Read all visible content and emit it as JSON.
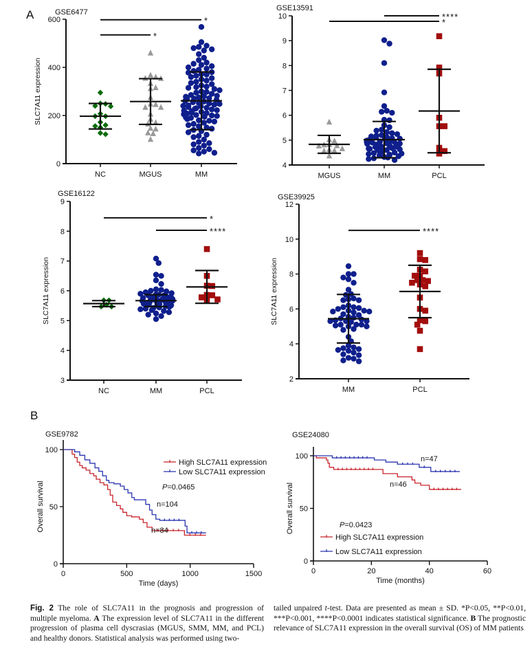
{
  "panel_labels": {
    "a": "A",
    "b": "B"
  },
  "caption": {
    "fig_label": "Fig. 2",
    "left": " The role of SLC7A11 in the prognosis and progression of multiple myeloma. ",
    "left_bold_a": "A",
    "left_rest": " The expression level of SLC7A11 in the different progression of plasma cell dyscrasias (MGUS, SMM, MM, and PCL) and healthy donors. Statistical analysis was performed using two-",
    "right_pre": "tailed unpaired ",
    "right_t": "t",
    "right_mid": "-test. Data are presented as mean ± SD. *P<0.05, **P<0.01, ***P<0.001, ****P<0.0001 indicates statistical significance. ",
    "right_bold_b": "B",
    "right_rest": " The prognostic relevance of SLC7A11 expression in the overall survival (OS) of MM patients"
  },
  "colors": {
    "NC": "#0b6b0b",
    "MGUS": "#9a9a9a",
    "MM": "#0f1f8c",
    "PCL": "#a30d0d",
    "high": "#c8242b",
    "low": "#2b35b0",
    "axis": "#111111"
  },
  "chart_data": [
    {
      "type": "scatter",
      "title": "GSE6477",
      "ylabel": "SLC7A11 expression",
      "ylim": [
        0,
        600
      ],
      "yticks": [
        0,
        200,
        400,
        600
      ],
      "categories": [
        "NC",
        "MGUS",
        "MM"
      ],
      "groups": [
        {
          "name": "NC",
          "marker": "diamond",
          "mean": 197,
          "sd": 53,
          "values": [
            295,
            250,
            248,
            240,
            238,
            207,
            197,
            197,
            172,
            160,
            156,
            150,
            127,
            122
          ]
        },
        {
          "name": "MGUS",
          "marker": "triangle",
          "mean": 258,
          "sd": 95,
          "values": [
            460,
            368,
            360,
            355,
            354,
            333,
            316,
            312,
            275,
            248,
            246,
            234,
            234,
            206,
            185,
            171,
            165,
            147,
            144,
            128,
            125,
            101
          ]
        },
        {
          "name": "MM",
          "marker": "circle",
          "mean": 261,
          "sd": 120,
          "values": [
            568,
            505,
            490,
            485,
            480,
            475,
            470,
            455,
            440,
            430,
            420,
            415,
            410,
            405,
            400,
            395,
            390,
            385,
            380,
            378,
            372,
            370,
            365,
            360,
            355,
            350,
            345,
            340,
            335,
            330,
            325,
            320,
            318,
            315,
            310,
            305,
            300,
            298,
            295,
            290,
            285,
            282,
            280,
            278,
            275,
            272,
            270,
            268,
            265,
            262,
            260,
            258,
            255,
            252,
            250,
            248,
            245,
            242,
            240,
            238,
            235,
            232,
            230,
            228,
            225,
            222,
            220,
            218,
            215,
            212,
            210,
            208,
            205,
            202,
            200,
            198,
            195,
            192,
            190,
            185,
            180,
            178,
            175,
            170,
            165,
            160,
            155,
            150,
            145,
            140,
            135,
            130,
            120,
            115,
            110,
            100,
            90,
            85,
            80,
            75,
            65,
            60,
            55,
            50,
            45,
            42
          ]
        }
      ],
      "significance": [
        {
          "from": "NC",
          "to": "MM",
          "y": 598,
          "label": "*"
        },
        {
          "from": "NC",
          "to": "MGUS",
          "y": 535,
          "label": "*"
        }
      ]
    },
    {
      "type": "scatter",
      "title": "GSE13591",
      "ylabel": "",
      "ylim": [
        4,
        10
      ],
      "yticks": [
        4,
        5,
        6,
        7,
        8,
        9,
        10
      ],
      "categories": [
        "MGUS",
        "MM",
        "PCL"
      ],
      "groups": [
        {
          "name": "MGUS",
          "marker": "triangle",
          "mean": 4.83,
          "sd": 0.36,
          "values": [
            5.73,
            5.02,
            4.97,
            4.82,
            4.81,
            4.78,
            4.77,
            4.66,
            4.62,
            4.58,
            4.57,
            4.37
          ]
        },
        {
          "name": "MM",
          "marker": "circle",
          "mean": 5.02,
          "sd": 0.73,
          "values": [
            9.02,
            8.88,
            8.1,
            6.92,
            6.37,
            6.18,
            6.14,
            6.1,
            5.82,
            5.8,
            5.6,
            5.52,
            5.42,
            5.38,
            5.32,
            5.28,
            5.24,
            5.2,
            5.18,
            5.15,
            5.12,
            5.1,
            5.08,
            5.06,
            5.05,
            5.02,
            5.0,
            4.98,
            4.96,
            4.95,
            4.93,
            4.92,
            4.9,
            4.88,
            4.86,
            4.85,
            4.83,
            4.82,
            4.8,
            4.78,
            4.76,
            4.75,
            4.73,
            4.72,
            4.7,
            4.68,
            4.66,
            4.65,
            4.63,
            4.62,
            4.6,
            4.58,
            4.56,
            4.55,
            4.53,
            4.5,
            4.48,
            4.46,
            4.44,
            4.42,
            4.4,
            4.38,
            4.35,
            4.32,
            4.3,
            4.27,
            4.24,
            4.2
          ]
        },
        {
          "name": "PCL",
          "marker": "square",
          "mean": 6.17,
          "sd": 1.68,
          "values": [
            9.18,
            7.92,
            7.68,
            5.9,
            5.56,
            5.56,
            4.69,
            4.56,
            4.46
          ]
        }
      ],
      "significance": [
        {
          "from": "MM",
          "to": "PCL",
          "y": 10.0,
          "label": "****"
        },
        {
          "from": "MGUS",
          "to": "PCL",
          "y": 9.78,
          "label": "*"
        }
      ]
    },
    {
      "type": "scatter",
      "title": "GSE16122",
      "ylabel": "SLC7A11 expression",
      "ylim": [
        3,
        9
      ],
      "yticks": [
        3,
        4,
        5,
        6,
        7,
        8,
        9
      ],
      "categories": [
        "NC",
        "MM",
        "PCL"
      ],
      "groups": [
        {
          "name": "NC",
          "marker": "diamond",
          "mean": 5.57,
          "sd": 0.1,
          "values": [
            5.68,
            5.68,
            5.53,
            5.47,
            5.47
          ]
        },
        {
          "name": "MM",
          "marker": "circle",
          "mean": 5.67,
          "sd": 0.2,
          "values": [
            7.08,
            6.93,
            6.54,
            6.5,
            6.35,
            6.23,
            6.05,
            6.03,
            6.0,
            5.98,
            5.95,
            5.92,
            5.9,
            5.88,
            5.87,
            5.85,
            5.84,
            5.82,
            5.8,
            5.79,
            5.78,
            5.77,
            5.76,
            5.75,
            5.74,
            5.73,
            5.72,
            5.71,
            5.7,
            5.69,
            5.68,
            5.67,
            5.66,
            5.65,
            5.64,
            5.63,
            5.62,
            5.61,
            5.6,
            5.59,
            5.58,
            5.57,
            5.56,
            5.55,
            5.54,
            5.53,
            5.52,
            5.5,
            5.48,
            5.46,
            5.44,
            5.42,
            5.4,
            5.38,
            5.35,
            5.32,
            5.28,
            5.24,
            5.2,
            5.15,
            5.05
          ]
        },
        {
          "name": "PCL",
          "marker": "square",
          "mean": 6.13,
          "sd": 0.55,
          "values": [
            7.4,
            6.5,
            6.17,
            6.16,
            5.86,
            5.85,
            5.78,
            5.71,
            5.69
          ]
        }
      ],
      "significance": [
        {
          "from": "NC",
          "to": "PCL",
          "y": 8.45,
          "label": "*"
        },
        {
          "from": "MM",
          "to": "PCL",
          "y": 8.03,
          "label": "****"
        }
      ]
    },
    {
      "type": "scatter",
      "title": "GSE39925",
      "ylabel": "SLC7A11 expression",
      "ylim": [
        2,
        12
      ],
      "yticks": [
        2,
        4,
        6,
        8,
        10,
        12
      ],
      "categories": [
        "MM",
        "PCL"
      ],
      "groups": [
        {
          "name": "MM",
          "marker": "circle",
          "mean": 5.44,
          "sd": 1.39,
          "values": [
            8.45,
            8.0,
            8.0,
            7.8,
            7.7,
            7.5,
            7.1,
            6.85,
            6.8,
            6.6,
            6.55,
            6.5,
            6.5,
            6.2,
            6.1,
            6.1,
            6.05,
            6.0,
            5.9,
            5.9,
            5.85,
            5.85,
            5.8,
            5.7,
            5.65,
            5.55,
            5.5,
            5.45,
            5.4,
            5.35,
            5.3,
            5.3,
            5.3,
            5.25,
            5.1,
            5.1,
            5.1,
            5.05,
            5.0,
            5.0,
            4.85,
            4.8,
            4.4,
            4.15,
            3.9,
            3.8,
            3.75,
            3.7,
            3.65,
            3.6,
            3.5,
            3.4,
            3.35,
            3.2,
            3.15,
            3.05,
            3.0
          ]
        },
        {
          "name": "PCL",
          "marker": "square",
          "mean": 7.0,
          "sd": 1.5,
          "values": [
            9.2,
            8.85,
            8.8,
            8.25,
            8.15,
            7.9,
            7.9,
            7.65,
            7.65,
            7.6,
            7.5,
            7.4,
            7.3,
            6.65,
            6.0,
            5.9,
            5.35,
            5.3,
            5.1,
            4.75,
            3.7
          ]
        }
      ],
      "significance": [
        {
          "from": "MM",
          "to": "PCL",
          "y": 10.5,
          "label": "****"
        }
      ]
    },
    {
      "type": "line",
      "subtype": "kaplan-meier",
      "title": "GSE9782",
      "xlabel": "Time (days)",
      "ylabel": "Overall survival",
      "xlim": [
        0,
        1500
      ],
      "ylim": [
        0,
        100
      ],
      "xticks": [
        0,
        500,
        1000,
        1500
      ],
      "yticks": [
        0,
        50,
        100
      ],
      "pvalue_prefix": "P",
      "pvalue_text": "=0.0465",
      "legend": [
        "High SLC7A11 expression",
        "Low SLC7A11 expression"
      ],
      "legend_position": "top-right",
      "series": [
        {
          "name": "High SLC7A11 expression",
          "n_label": "n=84",
          "points": [
            [
              0,
              100
            ],
            [
              60,
              100
            ],
            [
              70,
              96
            ],
            [
              90,
              93
            ],
            [
              110,
              89
            ],
            [
              130,
              86
            ],
            [
              150,
              84
            ],
            [
              180,
              82
            ],
            [
              210,
              79
            ],
            [
              240,
              77
            ],
            [
              260,
              74
            ],
            [
              290,
              71
            ],
            [
              320,
              69
            ],
            [
              350,
              65
            ],
            [
              370,
              60
            ],
            [
              390,
              54
            ],
            [
              420,
              51
            ],
            [
              450,
              48
            ],
            [
              470,
              45
            ],
            [
              500,
              42
            ],
            [
              540,
              41
            ],
            [
              600,
              39
            ],
            [
              630,
              36
            ],
            [
              660,
              32
            ],
            [
              700,
              29
            ],
            [
              950,
              29
            ],
            [
              955,
              25
            ],
            [
              1125,
              25
            ]
          ]
        },
        {
          "name": "Low SLC7A11 expression",
          "n_label": "n=104",
          "points": [
            [
              0,
              100
            ],
            [
              70,
              100
            ],
            [
              90,
              98
            ],
            [
              130,
              95
            ],
            [
              170,
              91
            ],
            [
              210,
              88
            ],
            [
              250,
              84
            ],
            [
              280,
              81
            ],
            [
              310,
              77
            ],
            [
              340,
              73
            ],
            [
              360,
              71
            ],
            [
              400,
              70
            ],
            [
              450,
              68
            ],
            [
              480,
              65
            ],
            [
              510,
              62
            ],
            [
              540,
              58
            ],
            [
              560,
              56
            ],
            [
              620,
              56
            ],
            [
              650,
              52
            ],
            [
              680,
              47
            ],
            [
              700,
              43
            ],
            [
              730,
              39
            ],
            [
              760,
              38
            ],
            [
              950,
              38
            ],
            [
              960,
              33
            ],
            [
              975,
              27
            ],
            [
              1125,
              27
            ]
          ]
        }
      ]
    },
    {
      "type": "line",
      "subtype": "kaplan-meier",
      "title": "GSE24080",
      "xlabel": "Time (months)",
      "ylabel": "Overall survival",
      "xlim": [
        0,
        60
      ],
      "ylim": [
        0,
        100
      ],
      "xticks": [
        0,
        20,
        40,
        60
      ],
      "yticks": [
        0,
        50,
        100
      ],
      "pvalue_prefix": "P",
      "pvalue_text": "=0.0423",
      "legend": [
        "High SLC7A11 expression",
        "Low SLC7A11 expression"
      ],
      "legend_position": "bottom-left",
      "series": [
        {
          "name": "High SLC7A11 expression",
          "n_label": "n=46",
          "points": [
            [
              0,
              100
            ],
            [
              1,
              98
            ],
            [
              4.5,
              96
            ],
            [
              5,
              93
            ],
            [
              5.5,
              89
            ],
            [
              7,
              87
            ],
            [
              22,
              87
            ],
            [
              24,
              83
            ],
            [
              29,
              80
            ],
            [
              34,
              77
            ],
            [
              35,
              74
            ],
            [
              37,
              72
            ],
            [
              40,
              68
            ],
            [
              51,
              68
            ]
          ]
        },
        {
          "name": "Low SLC7A11 expression",
          "n_label": "n=47",
          "points": [
            [
              0,
              100
            ],
            [
              6.5,
              98
            ],
            [
              20,
              98
            ],
            [
              21,
              96
            ],
            [
              25,
              94
            ],
            [
              29,
              92
            ],
            [
              36,
              92
            ],
            [
              36.5,
              89
            ],
            [
              40,
              89
            ],
            [
              40.5,
              85
            ],
            [
              50.5,
              85
            ]
          ]
        }
      ]
    }
  ]
}
